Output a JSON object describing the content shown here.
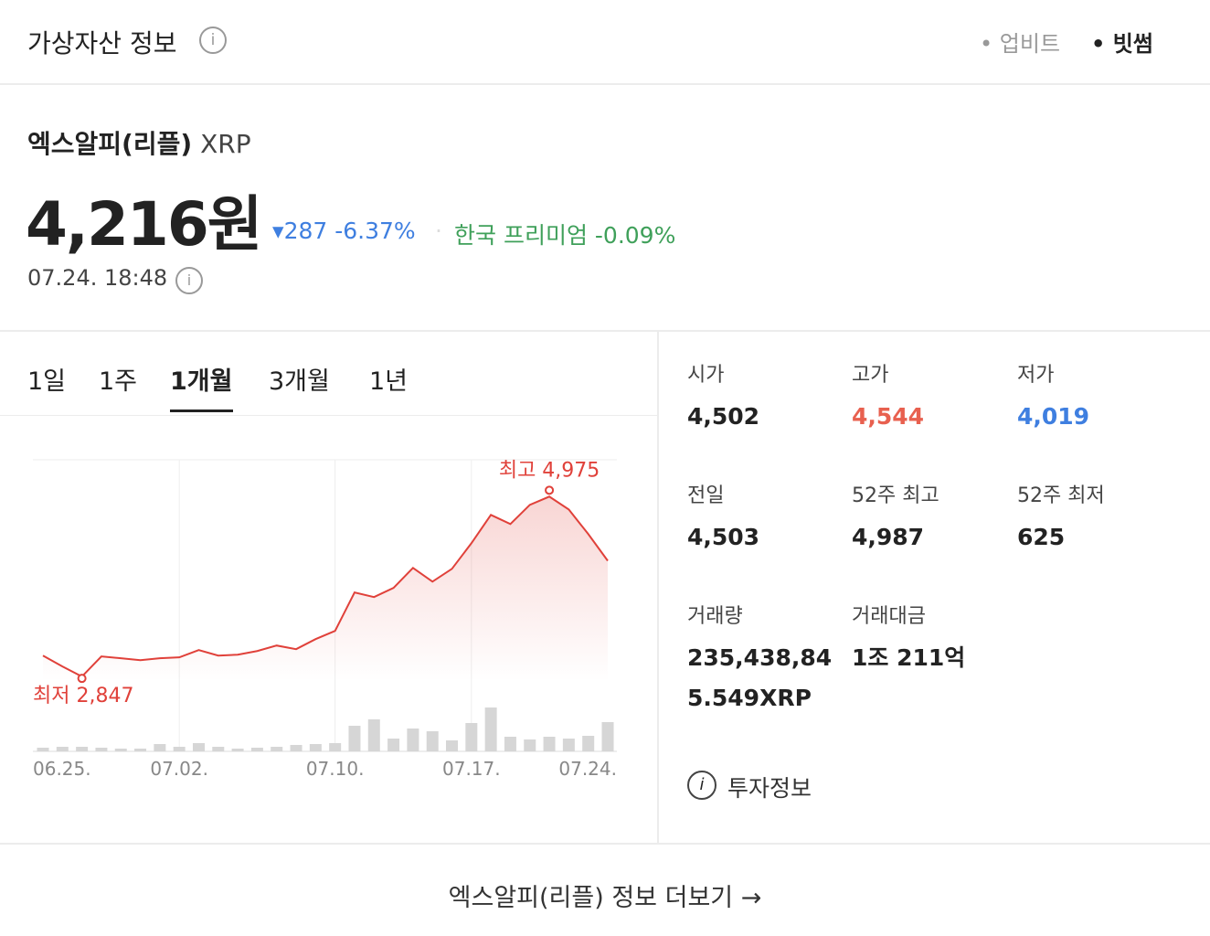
{
  "header": {
    "title": "가상자산 정보",
    "sources": [
      "업비트",
      "빗썸"
    ]
  },
  "coin": {
    "name": "엑스알피(리플)",
    "symbol": "XRP",
    "price": "4,216원",
    "change": "287",
    "change_rate": "-6.37%",
    "premium": "한국 프리미엄 -0.09%",
    "time": "07.24. 18:48"
  },
  "tabs": [
    "1일",
    "1주",
    "1개월",
    "3개월",
    "1년"
  ],
  "chart_data": {
    "type": "line",
    "x": [
      "06.25.",
      null,
      null,
      null,
      null,
      null,
      null,
      "07.02.",
      null,
      null,
      null,
      null,
      null,
      null,
      null,
      "07.10.",
      null,
      null,
      null,
      null,
      null,
      null,
      "07.17.",
      null,
      null,
      null,
      null,
      null,
      null,
      "07.24."
    ],
    "values": [
      3095,
      2966,
      2847,
      3085,
      3063,
      3041,
      3063,
      3074,
      3160,
      3095,
      3106,
      3149,
      3214,
      3171,
      3290,
      3387,
      3841,
      3787,
      3895,
      4132,
      3970,
      4121,
      4424,
      4759,
      4651,
      4878,
      4975,
      4823,
      4532,
      4216
    ],
    "color": "#e0413a",
    "ylim": [
      2200,
      5400
    ],
    "volumes": [
      4,
      5,
      5,
      4,
      3,
      3,
      8,
      5,
      9,
      5,
      3,
      4,
      5,
      7,
      8,
      9,
      28,
      35,
      14,
      25,
      22,
      12,
      31,
      48,
      16,
      13,
      16,
      14,
      17,
      32
    ],
    "volume_color": "#d6d6d6",
    "y2lim": [
      0,
      60
    ],
    "annotations": [
      "최고 4,975",
      "최저 2,847"
    ]
  },
  "stats": [
    {
      "label": "시가",
      "value": "4,502",
      "color": "#222222"
    },
    {
      "label": "고가",
      "value": "4,544",
      "color": "#e8604f"
    },
    {
      "label": "저가",
      "value": "4,019",
      "color": "#3f7fe0"
    },
    {
      "label": "전일",
      "value": "4,503",
      "color": "#222222"
    },
    {
      "label": "52주 최고",
      "value": "4,987",
      "color": "#222222"
    },
    {
      "label": "52주 최저",
      "value": "625",
      "color": "#222222"
    },
    {
      "label": "거래량",
      "value": "235,438,845.549XRP",
      "color": "#222222"
    },
    {
      "label": "거래대금",
      "value": "1조 211억",
      "color": "#222222"
    }
  ],
  "links": {
    "invest": "투자정보",
    "more": "엑스알피(리플) 정보 더보기 →"
  }
}
